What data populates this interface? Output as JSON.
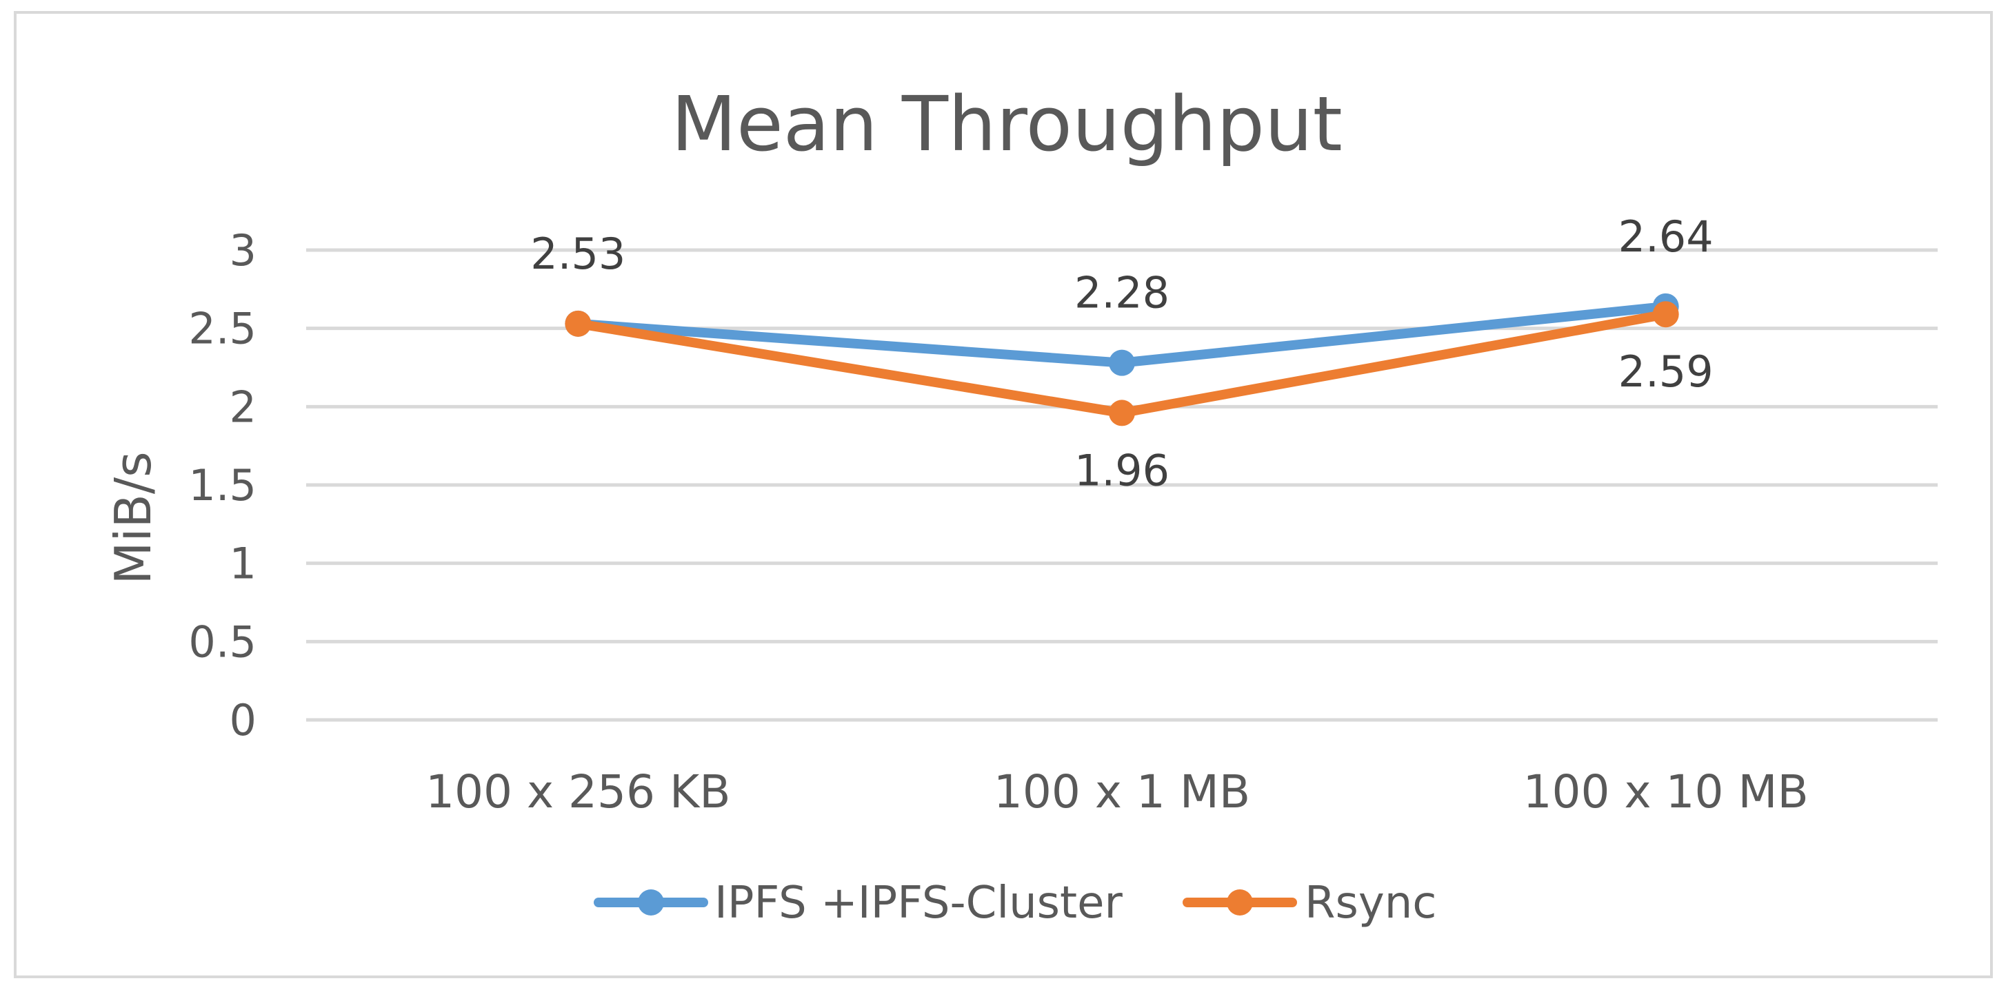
{
  "chart_data": {
    "type": "line",
    "title": "Mean Throughput",
    "ylabel": "MiB/s",
    "xlabel": "",
    "categories": [
      "100 x 256 KB",
      "100 x 1 MB",
      "100 x 10 MB"
    ],
    "ylim": [
      0,
      3
    ],
    "yticks": [
      0,
      0.5,
      1,
      1.5,
      2,
      2.5,
      3
    ],
    "ytick_labels": [
      "0",
      "0.5",
      "1",
      "1.5",
      "2",
      "2.5",
      "3"
    ],
    "grid": true,
    "legend_position": "bottom",
    "series": [
      {
        "name": "IPFS +IPFS-Cluster",
        "color": "#5b9bd5",
        "values": [
          2.53,
          2.28,
          2.64
        ],
        "data_labels": [
          "2.53",
          "2.28",
          "2.64"
        ]
      },
      {
        "name": "Rsync",
        "color": "#ed7d31",
        "values": [
          2.53,
          1.96,
          2.59
        ],
        "data_labels": [
          "",
          "1.96",
          "2.59"
        ]
      }
    ]
  }
}
